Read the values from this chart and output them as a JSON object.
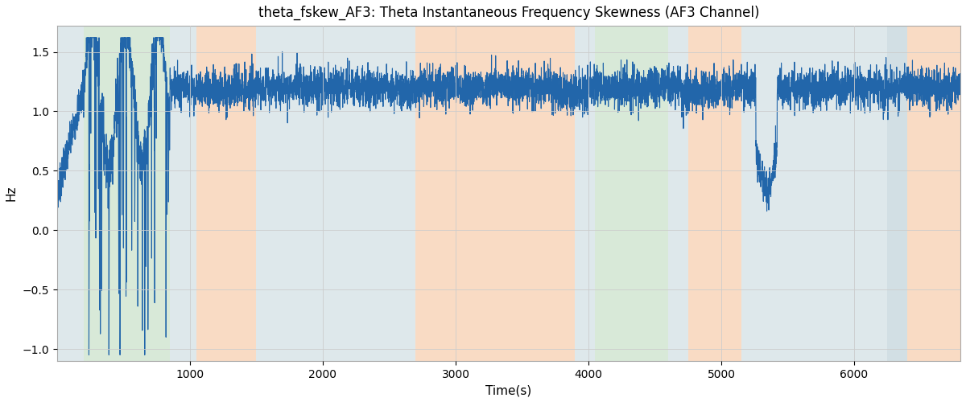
{
  "title": "theta_fskew_AF3: Theta Instantaneous Frequency Skewness (AF3 Channel)",
  "xlabel": "Time(s)",
  "ylabel": "Hz",
  "xlim": [
    0,
    6800
  ],
  "ylim": [
    -1.1,
    1.72
  ],
  "yticks": [
    -1.0,
    -0.5,
    0.0,
    0.5,
    1.0,
    1.5
  ],
  "xticks": [
    1000,
    2000,
    3000,
    4000,
    5000,
    6000
  ],
  "line_color": "#2266aa",
  "line_width": 0.8,
  "bg_color": "#ffffff",
  "grid_color": "#cccccc",
  "bands": [
    {
      "xmin": 0,
      "xmax": 200,
      "color": "#aec6cf",
      "alpha": 0.4
    },
    {
      "xmin": 200,
      "xmax": 850,
      "color": "#90c090",
      "alpha": 0.35
    },
    {
      "xmin": 850,
      "xmax": 1050,
      "color": "#aec6cf",
      "alpha": 0.4
    },
    {
      "xmin": 1050,
      "xmax": 1500,
      "color": "#f4b98a",
      "alpha": 0.5
    },
    {
      "xmin": 1500,
      "xmax": 2700,
      "color": "#aec6cf",
      "alpha": 0.4
    },
    {
      "xmin": 2700,
      "xmax": 3900,
      "color": "#f4b98a",
      "alpha": 0.5
    },
    {
      "xmin": 3900,
      "xmax": 4050,
      "color": "#aec6cf",
      "alpha": 0.4
    },
    {
      "xmin": 4050,
      "xmax": 4600,
      "color": "#90c090",
      "alpha": 0.35
    },
    {
      "xmin": 4600,
      "xmax": 4750,
      "color": "#aec6cf",
      "alpha": 0.4
    },
    {
      "xmin": 4750,
      "xmax": 5150,
      "color": "#f4b98a",
      "alpha": 0.5
    },
    {
      "xmin": 5150,
      "xmax": 6250,
      "color": "#aec6cf",
      "alpha": 0.4
    },
    {
      "xmin": 6250,
      "xmax": 6400,
      "color": "#aec6cf",
      "alpha": 0.55
    },
    {
      "xmin": 6400,
      "xmax": 6800,
      "color": "#f4b98a",
      "alpha": 0.5
    }
  ],
  "figsize": [
    12.0,
    5.0
  ],
  "dpi": 100
}
